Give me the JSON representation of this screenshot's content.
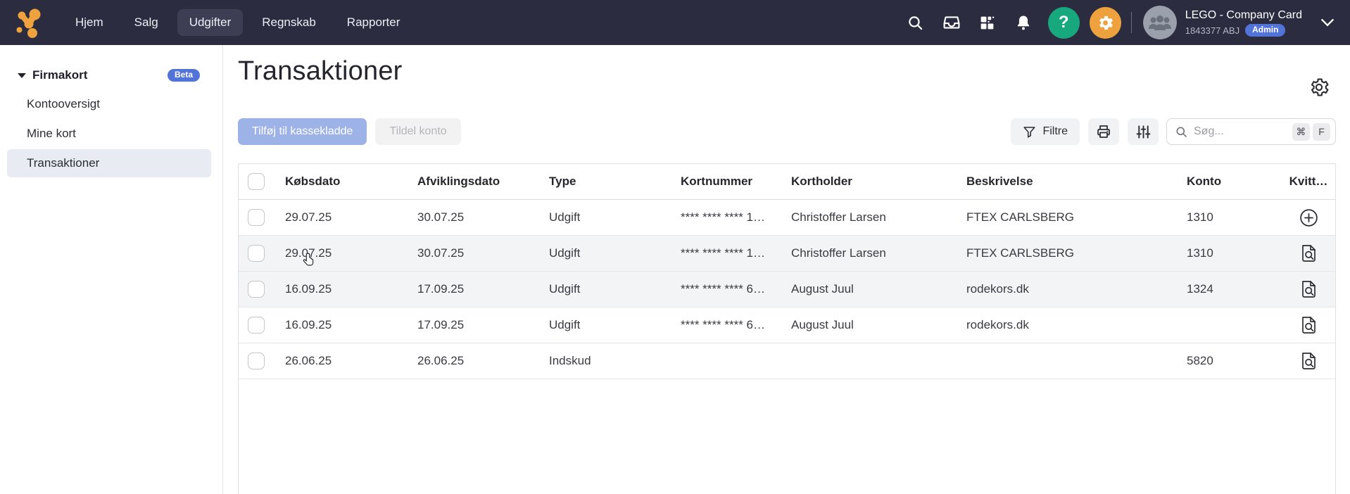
{
  "colors": {
    "topbar_bg": "#2b2c40",
    "accent_orange": "#eda23d",
    "help_green": "#17a87e",
    "badge_blue": "#5273d8",
    "primary_btn": "#9db3e7",
    "sidebar_selected": "#e8ecf2"
  },
  "topnav": {
    "items": [
      "Hjem",
      "Salg",
      "Udgifter",
      "Regnskab",
      "Rapporter"
    ],
    "selected_index": 2,
    "help_glyph": "?",
    "user": {
      "name": "LEGO - Company Card",
      "id": "1843377 ABJ",
      "badge": "Admin"
    }
  },
  "sidebar": {
    "section_label": "Firmakort",
    "section_badge": "Beta",
    "items": [
      "Kontooversigt",
      "Mine kort",
      "Transaktioner"
    ],
    "selected_index": 2
  },
  "page": {
    "title": "Transaktioner"
  },
  "toolbar": {
    "add_to_journal_label": "Tilføj til kassekladde",
    "assign_account_label": "Tildel konto",
    "filter_label": "Filtre",
    "search_placeholder": "Søg...",
    "shortcut_keys": [
      "⌘",
      "F"
    ]
  },
  "table": {
    "columns": [
      "Købsdato",
      "Afviklingsdato",
      "Type",
      "Kortnummer",
      "Kortholder",
      "Beskrivelse",
      "Konto",
      "Kvitt…"
    ],
    "rows": [
      {
        "kobsdato": "29.07.25",
        "afviklingsdato": "30.07.25",
        "type": "Udgift",
        "kortnummer": "**** **** **** 1…",
        "kortholder": "Christoffer Larsen",
        "beskrivelse": "FTEX CARLSBERG",
        "konto": "1310",
        "receipt": "add",
        "shaded": false
      },
      {
        "kobsdato": "29.07.25",
        "afviklingsdato": "30.07.25",
        "type": "Udgift",
        "kortnummer": "**** **** **** 1…",
        "kortholder": "Christoffer Larsen",
        "beskrivelse": "FTEX CARLSBERG",
        "konto": "1310",
        "receipt": "view",
        "shaded": true
      },
      {
        "kobsdato": "16.09.25",
        "afviklingsdato": "17.09.25",
        "type": "Udgift",
        "kortnummer": "**** **** **** 6…",
        "kortholder": "August Juul",
        "beskrivelse": "rodekors.dk",
        "konto": "1324",
        "receipt": "view",
        "shaded": true
      },
      {
        "kobsdato": "16.09.25",
        "afviklingsdato": "17.09.25",
        "type": "Udgift",
        "kortnummer": "**** **** **** 6…",
        "kortholder": "August Juul",
        "beskrivelse": "rodekors.dk",
        "konto": "",
        "receipt": "view",
        "shaded": false
      },
      {
        "kobsdato": "26.06.25",
        "afviklingsdato": "26.06.25",
        "type": "Indskud",
        "kortnummer": "",
        "kortholder": "",
        "beskrivelse": "",
        "konto": "5820",
        "receipt": "view",
        "shaded": false
      }
    ]
  }
}
